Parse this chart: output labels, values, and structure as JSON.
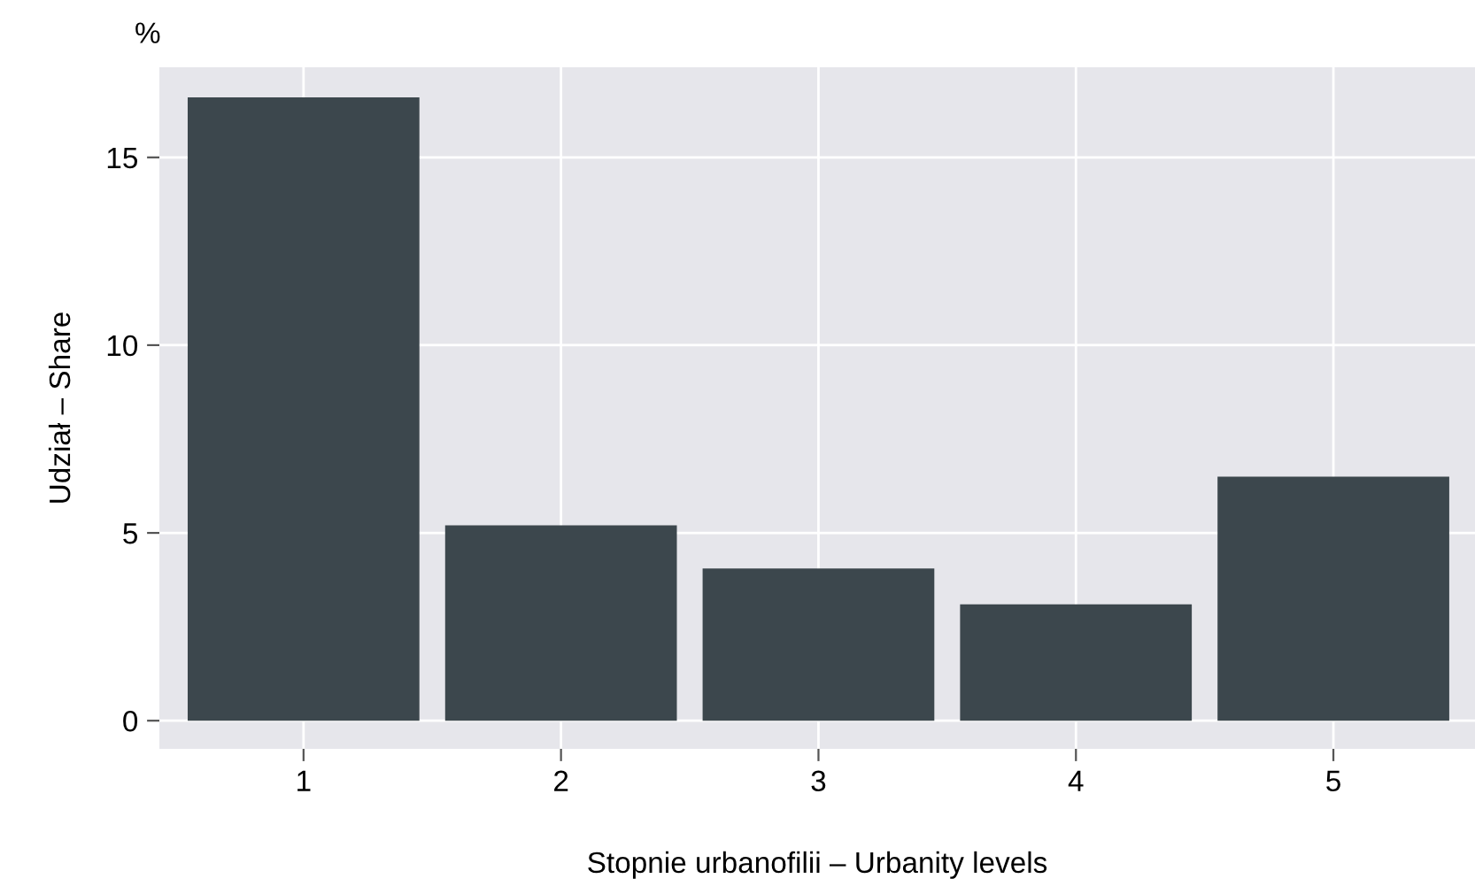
{
  "chart_data": {
    "type": "bar",
    "categories": [
      "1",
      "2",
      "3",
      "4",
      "5"
    ],
    "values": [
      16.6,
      5.2,
      4.05,
      3.1,
      6.5
    ],
    "color": "#3c474d",
    "xlabel": "Stopnie urbanofilii – Urbanity levels",
    "ylabel": "Udział – Share",
    "annotations": [
      "%"
    ],
    "ylim": [
      -0.75,
      17.4
    ],
    "yticks": [
      0,
      5,
      10,
      15
    ],
    "grid": true
  }
}
